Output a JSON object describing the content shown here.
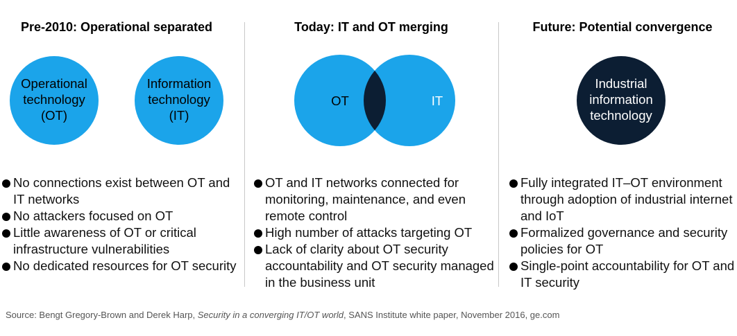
{
  "columns": [
    {
      "title": "Pre-2010: Operational separated",
      "circles": [
        {
          "lines": [
            "Operational",
            "technology",
            "(OT)"
          ]
        },
        {
          "lines": [
            "Information",
            "technology",
            "(IT)"
          ]
        }
      ],
      "bullets": [
        "No connections exist between OT and IT networks",
        "No attackers focused on OT",
        "Little awareness of OT or critical infrastructure vulnerabilities",
        "No dedicated resources for OT security"
      ]
    },
    {
      "title": "Today: IT and OT merging",
      "circles": [
        {
          "lines": [
            "OT"
          ]
        },
        {
          "lines": [
            "IT"
          ]
        }
      ],
      "bullets": [
        "OT and IT networks connected for monitoring, maintenance, and even remote control",
        "High number of attacks targeting OT",
        "Lack of clarity about OT security accountability and OT security managed in the business unit"
      ]
    },
    {
      "title": "Future: Potential convergence",
      "circles": [
        {
          "lines": [
            "Industrial",
            "information",
            "technology"
          ]
        }
      ],
      "bullets": [
        "Fully integrated IT–OT environment through adoption of industrial internet and IoT",
        "Formalized governance and security policies for OT",
        "Single-point accountability for OT and IT security"
      ]
    }
  ],
  "source": {
    "prefix": "Source: Bengt Gregory-Brown and Derek Harp, ",
    "italic": "Security in a converging IT/OT world",
    "suffix": ", SANS Institute white paper, November 2016, ge.com"
  }
}
